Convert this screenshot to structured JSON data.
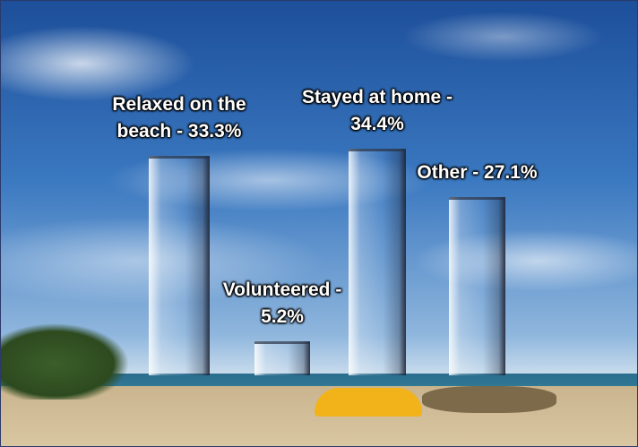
{
  "chart_data": {
    "type": "bar",
    "value_labels": [
      "Relaxed on the beach - 33.3%",
      "Volunteered - 5.2%",
      "Stayed at home - 34.4%",
      "Other - 27.1%"
    ],
    "values": [
      33.3,
      5.2,
      34.4,
      27.1
    ],
    "color": "#ffffff"
  }
}
